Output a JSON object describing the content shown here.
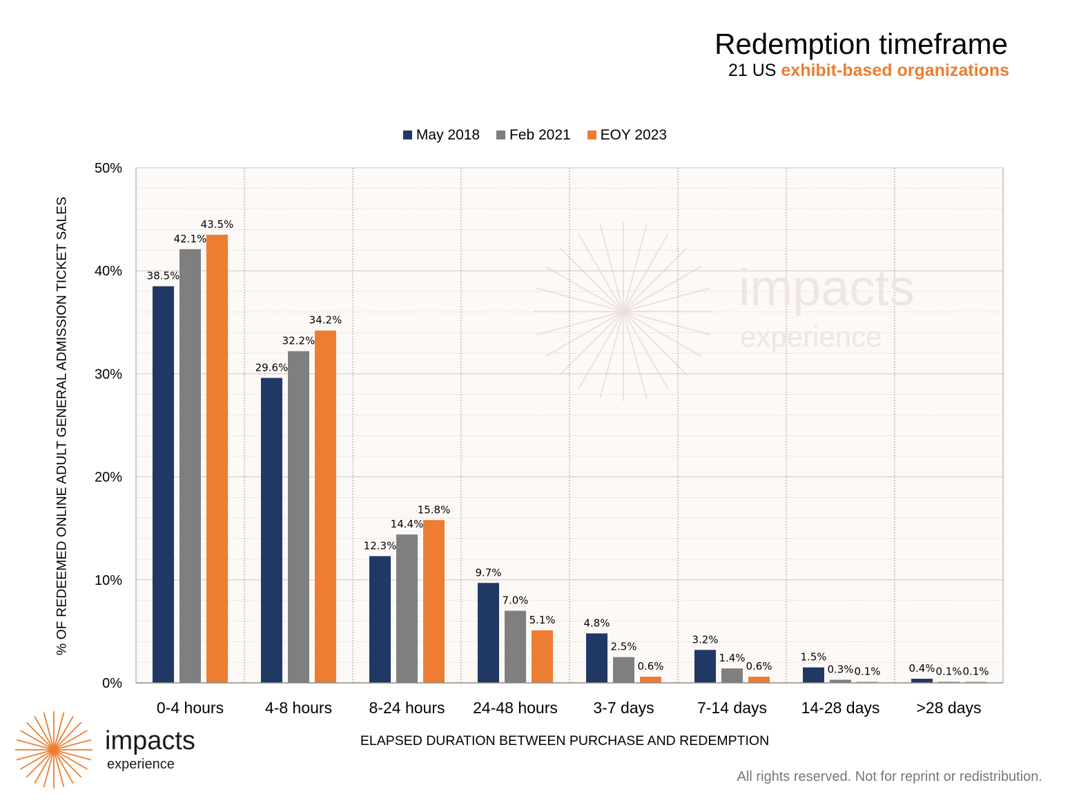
{
  "header": {
    "title": "Redemption timeframe",
    "subtitle_prefix": "21 US",
    "subtitle_highlight": "exhibit-based organizations"
  },
  "brand": {
    "logo_line1": "impacts",
    "logo_line2": "experience",
    "accent_color": "#ED7D31"
  },
  "footer": {
    "text": "All rights reserved. Not for reprint or redistribution."
  },
  "chart_data": {
    "type": "bar",
    "categories": [
      "0-4 hours",
      "4-8 hours",
      "8-24 hours",
      "24-48 hours",
      "3-7 days",
      "7-14 days",
      "14-28 days",
      ">28 days"
    ],
    "series": [
      {
        "name": "May 2018",
        "color": "#203864",
        "values": [
          38.5,
          29.6,
          12.3,
          9.7,
          4.8,
          3.2,
          1.5,
          0.4
        ],
        "labels": [
          "38.5%",
          "29.6%",
          "12.3%",
          "9.7%",
          "4.8%",
          "3.2%",
          "1.5%",
          "0.4%"
        ]
      },
      {
        "name": "Feb 2021",
        "color": "#7F7F7F",
        "values": [
          42.1,
          32.2,
          14.4,
          7.0,
          2.5,
          1.4,
          0.3,
          0.1
        ],
        "labels": [
          "42.1%",
          "32.2%",
          "14.4%",
          "7.0%",
          "2.5%",
          "1.4%",
          "0.3%",
          "0.1%"
        ]
      },
      {
        "name": "EOY 2023",
        "color": "#ED7D31",
        "values": [
          43.5,
          34.2,
          15.8,
          5.1,
          0.6,
          0.6,
          0.1,
          0.1
        ],
        "labels": [
          "43.5%",
          "34.2%",
          "15.8%",
          "5.1%",
          "0.6%",
          "0.6%",
          "0.1%",
          "0.1%"
        ]
      }
    ],
    "xlabel": "ELAPSED DURATION BETWEEN PURCHASE AND REDEMPTION",
    "ylabel": "% OF REDEEMED ONLINE ADULT GENERAL ADMISSION TICKET SALES",
    "ylim": [
      0,
      50
    ],
    "yticks": [
      0,
      10,
      20,
      30,
      40,
      50
    ],
    "ytick_labels": [
      "0%",
      "10%",
      "20%",
      "30%",
      "40%",
      "50%"
    ],
    "minor_grid_step": 2,
    "grid": true,
    "legend": "top-center",
    "plot_background": "#FDF9F7"
  }
}
